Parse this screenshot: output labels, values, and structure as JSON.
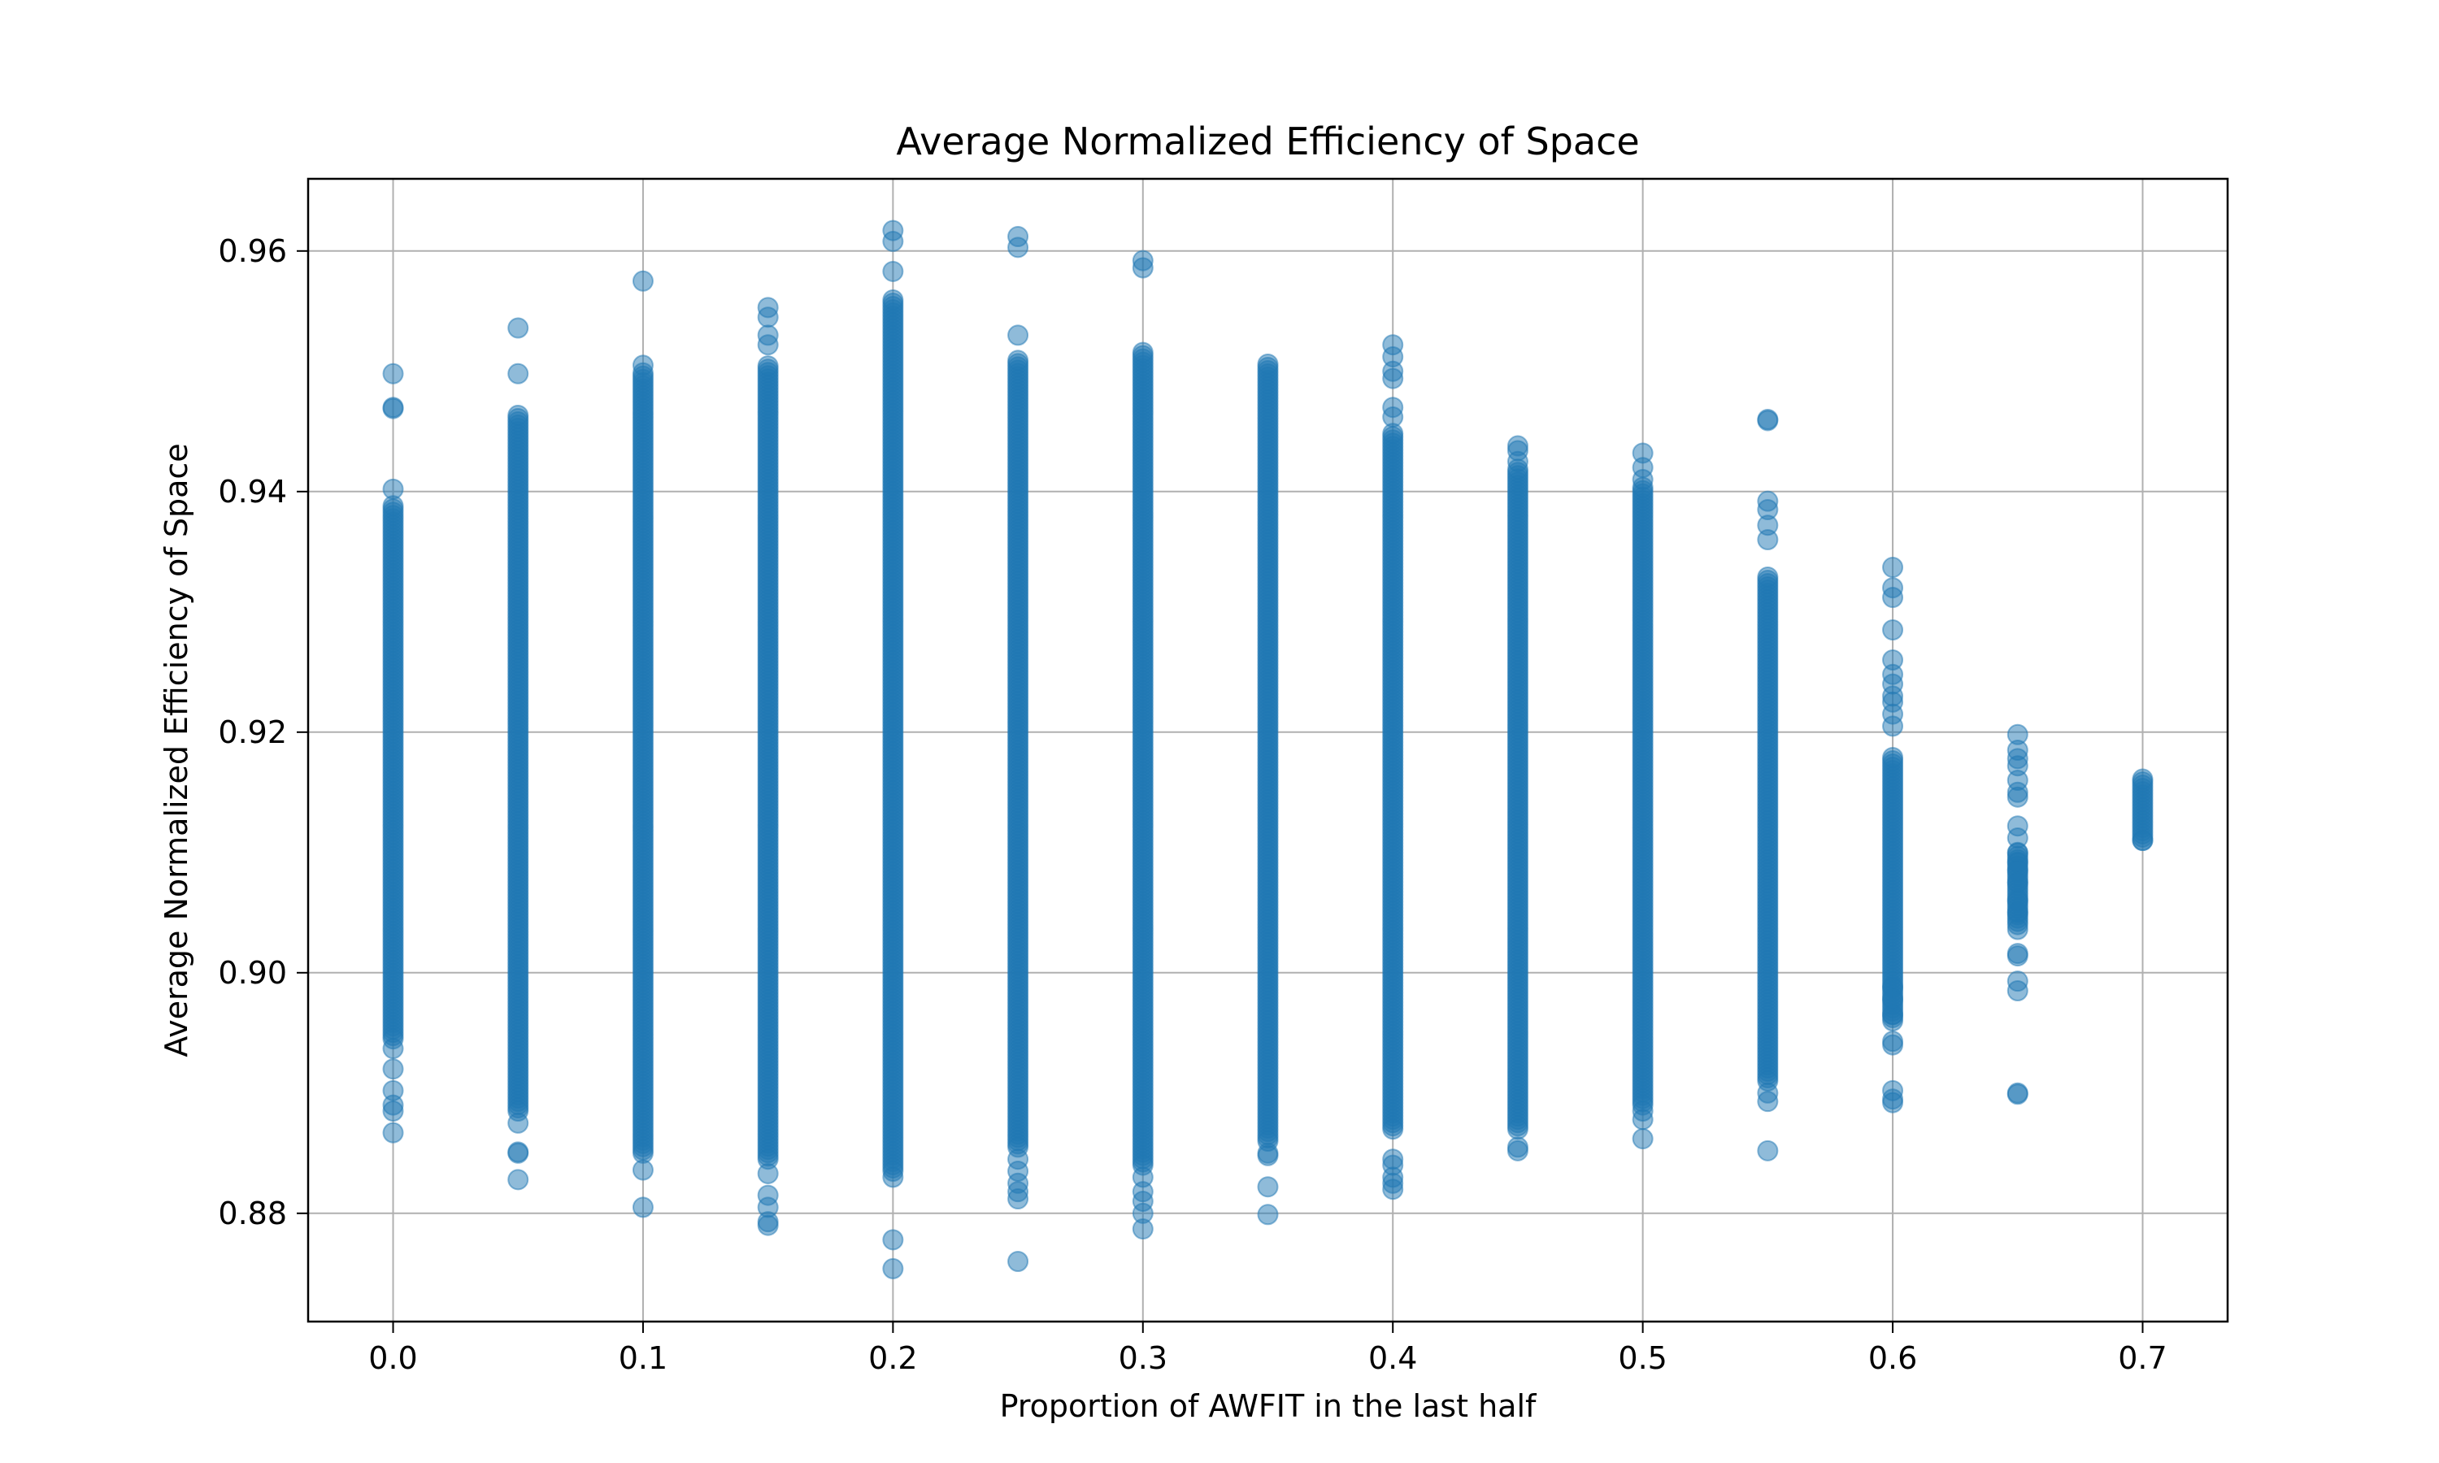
{
  "chart_data": {
    "type": "scatter",
    "title": "Average Normalized Efficiency of Space",
    "xlabel": "Proportion of AWFIT in the last half",
    "ylabel": "Average Normalized Efficiency of Space",
    "xlim": [
      -0.034,
      0.734
    ],
    "ylim": [
      0.871,
      0.966
    ],
    "x_ticks": [
      0.0,
      0.1,
      0.2,
      0.3,
      0.4,
      0.5,
      0.6,
      0.7
    ],
    "x_tick_labels": [
      "0.0",
      "0.1",
      "0.2",
      "0.3",
      "0.4",
      "0.5",
      "0.6",
      "0.7"
    ],
    "y_ticks": [
      0.88,
      0.9,
      0.92,
      0.94,
      0.96
    ],
    "y_tick_labels": [
      "0.88",
      "0.90",
      "0.92",
      "0.94",
      "0.96"
    ],
    "grid": true,
    "legend": "none",
    "colors": {
      "marker": "#1f77b4",
      "grid": "#b0b0b0",
      "axes": "#000000"
    },
    "series": [
      {
        "values": [
          {
            "x": 0.0,
            "y_min": 0.8945,
            "y_max": 0.939,
            "outliers": [
              0.9498,
              0.947,
              0.9469,
              0.9402,
              0.8937,
              0.892,
              0.8902,
              0.889,
              0.8885,
              0.8867
            ]
          },
          {
            "x": 0.05,
            "y_min": 0.8885,
            "y_max": 0.9465,
            "outliers": [
              0.9536,
              0.9498,
              0.8875,
              0.8851,
              0.885,
              0.8828
            ]
          },
          {
            "x": 0.1,
            "y_min": 0.885,
            "y_max": 0.95,
            "outliers": [
              0.9575,
              0.9505,
              0.8836,
              0.8805
            ]
          },
          {
            "x": 0.15,
            "y_min": 0.8845,
            "y_max": 0.9505,
            "outliers": [
              0.9553,
              0.9545,
              0.953,
              0.9522,
              0.8833,
              0.8815,
              0.8805,
              0.8793,
              0.879
            ]
          },
          {
            "x": 0.2,
            "y_min": 0.8835,
            "y_max": 0.956,
            "outliers": [
              0.9617,
              0.9608,
              0.9583,
              0.883,
              0.8778,
              0.8754
            ]
          },
          {
            "x": 0.25,
            "y_min": 0.8855,
            "y_max": 0.951,
            "outliers": [
              0.9612,
              0.9603,
              0.953,
              0.8845,
              0.8835,
              0.8825,
              0.8818,
              0.8812,
              0.876
            ]
          },
          {
            "x": 0.3,
            "y_min": 0.884,
            "y_max": 0.9518,
            "outliers": [
              0.9592,
              0.9586,
              0.883,
              0.8818,
              0.881,
              0.88,
              0.8787
            ]
          },
          {
            "x": 0.35,
            "y_min": 0.886,
            "y_max": 0.9508,
            "outliers": [
              0.885,
              0.8848,
              0.8822,
              0.8799
            ]
          },
          {
            "x": 0.4,
            "y_min": 0.887,
            "y_max": 0.945,
            "outliers": [
              0.9522,
              0.9512,
              0.95,
              0.9494,
              0.947,
              0.9462,
              0.8845,
              0.884,
              0.883,
              0.8825,
              0.882
            ]
          },
          {
            "x": 0.45,
            "y_min": 0.887,
            "y_max": 0.942,
            "outliers": [
              0.9438,
              0.9434,
              0.9425,
              0.8855,
              0.8852
            ]
          },
          {
            "x": 0.5,
            "y_min": 0.889,
            "y_max": 0.9405,
            "outliers": [
              0.9432,
              0.942,
              0.941,
              0.8885,
              0.8878,
              0.8862
            ]
          },
          {
            "x": 0.55,
            "y_min": 0.891,
            "y_max": 0.933,
            "outliers": [
              0.946,
              0.9459,
              0.9392,
              0.9385,
              0.9372,
              0.936,
              0.89,
              0.8893,
              0.8852
            ]
          },
          {
            "x": 0.6,
            "y_min": 0.896,
            "y_max": 0.918,
            "outliers": [
              0.9337,
              0.932,
              0.9312,
              0.9285,
              0.926,
              0.9248,
              0.924,
              0.923,
              0.9225,
              0.9215,
              0.9205,
              0.8988,
              0.8978,
              0.8965,
              0.8943,
              0.894,
              0.8902,
              0.8895,
              0.8892
            ]
          },
          {
            "x": 0.65,
            "y_min": 0.904,
            "y_max": 0.91,
            "outliers": [
              0.9198,
              0.9185,
              0.9178,
              0.9172,
              0.916,
              0.915,
              0.9146,
              0.9122,
              0.9112,
              0.91,
              0.9092,
              0.9085,
              0.9075,
              0.906,
              0.905,
              0.9036,
              0.9016,
              0.9014,
              0.8993,
              0.8985,
              0.89,
              0.8899
            ]
          },
          {
            "x": 0.7,
            "y_min": 0.911,
            "y_max": 0.916,
            "outliers": [
              0.9161,
              0.911
            ]
          }
        ]
      }
    ]
  }
}
